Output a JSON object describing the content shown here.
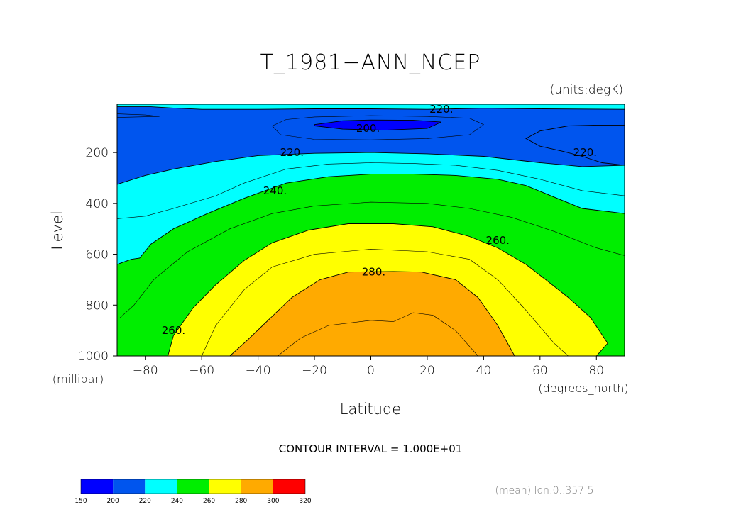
{
  "chart_data": {
    "type": "contour",
    "title": "T_1981−ANN_NCEP",
    "units_label": "(units:degK)",
    "xlabel": "Latitude",
    "ylabel": "Level",
    "x_units_label": "(degrees_north)",
    "y_units_label": "(millibar)",
    "xlim": [
      -90,
      90
    ],
    "ylim": [
      1000,
      10
    ],
    "x_ticks": [
      -80,
      -60,
      -40,
      -20,
      0,
      20,
      40,
      60,
      80
    ],
    "x_tick_labels": [
      "−80",
      "−60",
      "−40",
      "−20",
      "0",
      "20",
      "40",
      "60",
      "80"
    ],
    "y_ticks": [
      200,
      400,
      600,
      800,
      1000
    ],
    "y_tick_labels": [
      "200",
      "400",
      "600",
      "800",
      "1000"
    ],
    "contour_interval_text": "CONTOUR INTERVAL = 1.000E+01",
    "contour_interval": 10,
    "footer_text": "(mean) lon:0..357.5",
    "colorbar": {
      "levels": [
        150,
        200,
        220,
        240,
        260,
        280,
        300,
        320
      ],
      "level_labels": [
        "150",
        "200",
        "220",
        "240",
        "260",
        "280",
        "300",
        "320"
      ],
      "colors": [
        "#0000ff",
        "#0055ee",
        "#00ffff",
        "#00ee00",
        "#ffff00",
        "#ffaa00",
        "#ff0000"
      ]
    },
    "contour_labels": [
      {
        "text": "220.",
        "lat": 25,
        "lev": 30
      },
      {
        "text": "200.",
        "lat": -1,
        "lev": 105
      },
      {
        "text": "220.",
        "lat": -28,
        "lev": 200
      },
      {
        "text": "220.",
        "lat": 76,
        "lev": 200
      },
      {
        "text": "240.",
        "lat": -34,
        "lev": 350
      },
      {
        "text": "260.",
        "lat": 45,
        "lev": 545
      },
      {
        "text": "280.",
        "lat": 1,
        "lev": 670
      },
      {
        "text": "260.",
        "lat": -70,
        "lev": 900
      }
    ],
    "regions": [
      {
        "fill": "#00ffff",
        "value_range": [
          220,
          240
        ],
        "boundary": [
          [
            -90,
            10
          ],
          [
            90,
            10
          ],
          [
            90,
            1000
          ],
          [
            -90,
            1000
          ]
        ]
      },
      {
        "fill": "#0055ee",
        "value_range": [
          200,
          220
        ],
        "boundary": [
          [
            -90,
            20
          ],
          [
            -78,
            20
          ],
          [
            -70,
            25
          ],
          [
            -60,
            30
          ],
          [
            -40,
            30
          ],
          [
            -20,
            28
          ],
          [
            0,
            28
          ],
          [
            20,
            30
          ],
          [
            30,
            28
          ],
          [
            40,
            26
          ],
          [
            60,
            28
          ],
          [
            90,
            30
          ],
          [
            90,
            250
          ],
          [
            82,
            240
          ],
          [
            75,
            215
          ],
          [
            68,
            195
          ],
          [
            60,
            175
          ],
          [
            55,
            145
          ],
          [
            60,
            115
          ],
          [
            70,
            95
          ],
          [
            80,
            92
          ],
          [
            90,
            92
          ],
          [
            90,
            250
          ],
          [
            75,
            255
          ],
          [
            60,
            240
          ],
          [
            40,
            215
          ],
          [
            20,
            205
          ],
          [
            0,
            200
          ],
          [
            -20,
            203
          ],
          [
            -40,
            212
          ],
          [
            -55,
            235
          ],
          [
            -70,
            265
          ],
          [
            -80,
            290
          ],
          [
            -90,
            325
          ]
        ]
      },
      {
        "fill": "#0000ff",
        "value_range": [
          150,
          200
        ],
        "boundary": [
          [
            -20,
            90
          ],
          [
            -10,
            75
          ],
          [
            0,
            72
          ],
          [
            15,
            73
          ],
          [
            25,
            80
          ],
          [
            20,
            105
          ],
          [
            5,
            112
          ],
          [
            -10,
            108
          ],
          [
            -20,
            95
          ]
        ]
      },
      {
        "fill": "#00ee00",
        "value_range": [
          240,
          260
        ],
        "boundary": [
          [
            -90,
            640
          ],
          [
            -85,
            620
          ],
          [
            -82,
            615
          ],
          [
            -78,
            560
          ],
          [
            -70,
            500
          ],
          [
            -58,
            440
          ],
          [
            -45,
            380
          ],
          [
            -30,
            320
          ],
          [
            -15,
            295
          ],
          [
            0,
            285
          ],
          [
            15,
            285
          ],
          [
            30,
            290
          ],
          [
            45,
            305
          ],
          [
            55,
            330
          ],
          [
            65,
            375
          ],
          [
            75,
            420
          ],
          [
            90,
            440
          ],
          [
            90,
            1000
          ],
          [
            -90,
            1000
          ]
        ]
      },
      {
        "fill": "#ffff00",
        "value_range": [
          260,
          280
        ],
        "boundary": [
          [
            -72,
            1000
          ],
          [
            -70,
            920
          ],
          [
            -63,
            810
          ],
          [
            -55,
            720
          ],
          [
            -45,
            625
          ],
          [
            -35,
            555
          ],
          [
            -22,
            505
          ],
          [
            -8,
            480
          ],
          [
            8,
            480
          ],
          [
            22,
            492
          ],
          [
            35,
            530
          ],
          [
            45,
            575
          ],
          [
            55,
            640
          ],
          [
            62,
            700
          ],
          [
            70,
            770
          ],
          [
            78,
            850
          ],
          [
            84,
            950
          ],
          [
            80,
            1000
          ]
        ]
      },
      {
        "fill": "#ffaa00",
        "value_range": [
          280,
          300
        ],
        "boundary": [
          [
            -50,
            1000
          ],
          [
            -44,
            940
          ],
          [
            -36,
            855
          ],
          [
            -28,
            770
          ],
          [
            -18,
            700
          ],
          [
            -8,
            670
          ],
          [
            8,
            668
          ],
          [
            18,
            670
          ],
          [
            30,
            700
          ],
          [
            38,
            770
          ],
          [
            45,
            880
          ],
          [
            51,
            1000
          ]
        ]
      }
    ],
    "contour_lines": [
      {
        "level": 210,
        "points": [
          [
            -90,
            48
          ],
          [
            -80,
            52
          ],
          [
            -75,
            58
          ],
          [
            -90,
            62
          ]
        ]
      },
      {
        "level": 210,
        "points": [
          [
            -35,
            95
          ],
          [
            -30,
            70
          ],
          [
            -20,
            60
          ],
          [
            0,
            55
          ],
          [
            20,
            58
          ],
          [
            35,
            65
          ],
          [
            40,
            90
          ],
          [
            35,
            130
          ],
          [
            20,
            145
          ],
          [
            0,
            150
          ],
          [
            -20,
            148
          ],
          [
            -32,
            130
          ],
          [
            -35,
            95
          ]
        ]
      },
      {
        "level": 230,
        "points": [
          [
            -90,
            460
          ],
          [
            -80,
            450
          ],
          [
            -70,
            420
          ],
          [
            -55,
            370
          ],
          [
            -45,
            320
          ],
          [
            -30,
            265
          ],
          [
            -15,
            245
          ],
          [
            0,
            240
          ],
          [
            15,
            243
          ],
          [
            30,
            250
          ],
          [
            45,
            270
          ],
          [
            60,
            305
          ],
          [
            75,
            350
          ],
          [
            90,
            370
          ]
        ]
      },
      {
        "level": 250,
        "points": [
          [
            -89,
            850
          ],
          [
            -84,
            800
          ],
          [
            -77,
            700
          ],
          [
            -65,
            590
          ],
          [
            -50,
            500
          ],
          [
            -35,
            440
          ],
          [
            -20,
            410
          ],
          [
            0,
            395
          ],
          [
            20,
            400
          ],
          [
            35,
            420
          ],
          [
            50,
            455
          ],
          [
            65,
            510
          ],
          [
            80,
            575
          ],
          [
            90,
            605
          ]
        ]
      },
      {
        "level": 270,
        "points": [
          [
            -60,
            1000
          ],
          [
            -55,
            880
          ],
          [
            -45,
            740
          ],
          [
            -35,
            650
          ],
          [
            -20,
            600
          ],
          [
            0,
            580
          ],
          [
            20,
            590
          ],
          [
            35,
            620
          ],
          [
            45,
            700
          ],
          [
            55,
            820
          ],
          [
            65,
            950
          ],
          [
            70,
            1000
          ]
        ]
      },
      {
        "level": 290,
        "points": [
          [
            -33,
            1000
          ],
          [
            -25,
            930
          ],
          [
            -15,
            880
          ],
          [
            0,
            860
          ],
          [
            8,
            865
          ],
          [
            15,
            830
          ],
          [
            22,
            840
          ],
          [
            30,
            900
          ],
          [
            38,
            1000
          ]
        ]
      }
    ]
  }
}
